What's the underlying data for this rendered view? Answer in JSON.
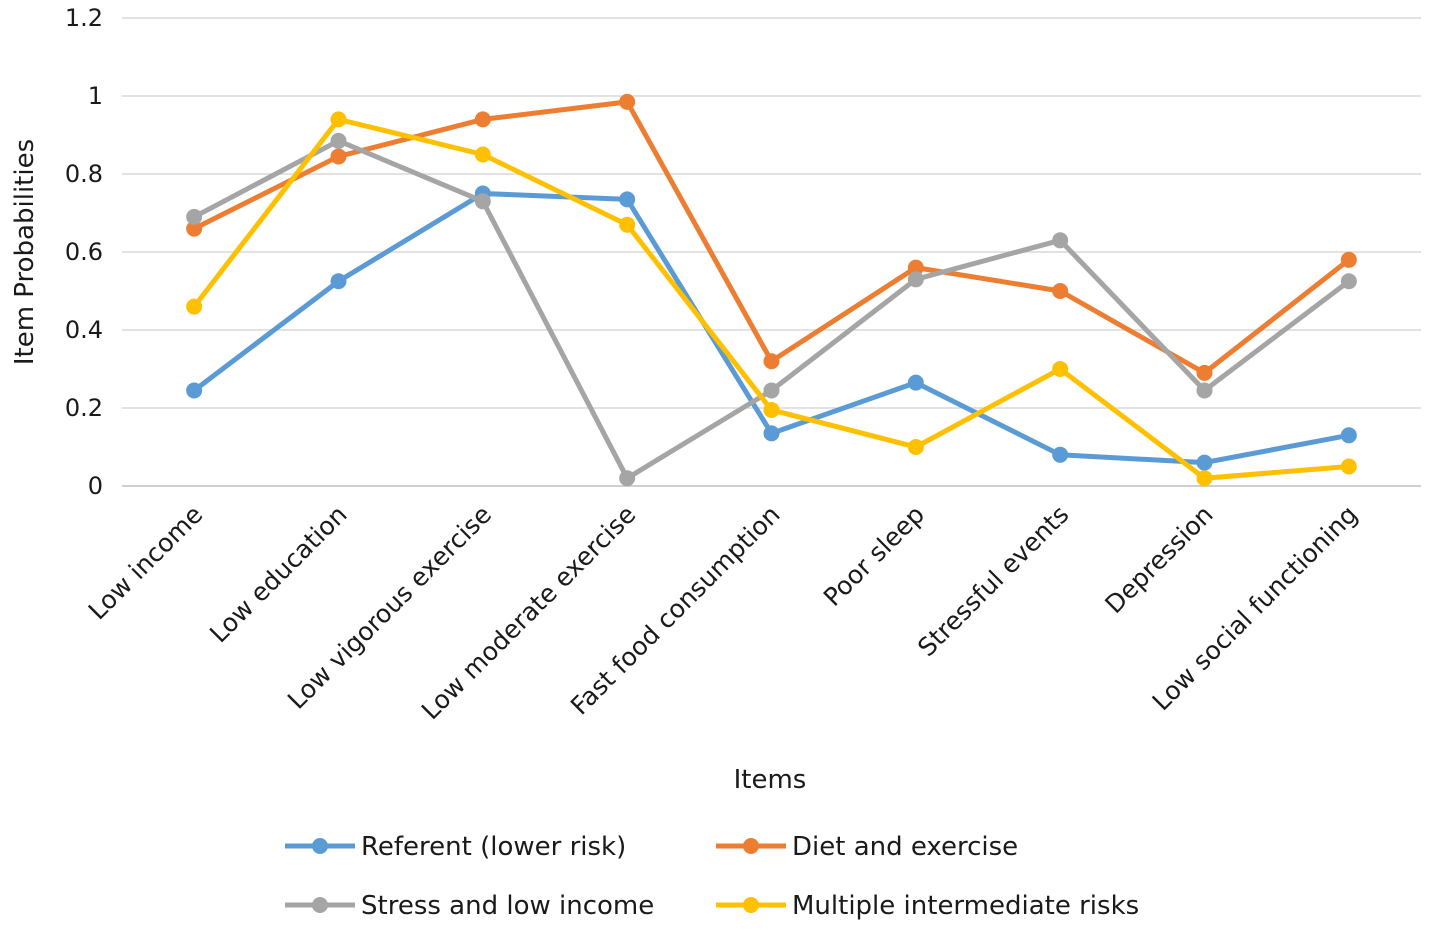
{
  "chart_data": {
    "type": "line",
    "title": "",
    "xlabel": "Items",
    "ylabel": "Item Probabilities",
    "ylim": [
      0,
      1.2
    ],
    "yticks": [
      0,
      0.2,
      0.4,
      0.6,
      0.8,
      1,
      1.2
    ],
    "ytick_labels": [
      "0",
      "0.2",
      "0.4",
      "0.6",
      "0.8",
      "1",
      "1.2"
    ],
    "grid": true,
    "legend_position": "bottom",
    "categories": [
      "Low income",
      "Low education",
      "Low vigorous exercise",
      "Low moderate exercise",
      "Fast food consumption",
      "Poor sleep",
      "Stressful events",
      "Depression",
      "Low social functioning"
    ],
    "series": [
      {
        "name": "Referent (lower risk)",
        "color": "#5b9bd5",
        "values": [
          0.245,
          0.525,
          0.75,
          0.735,
          0.135,
          0.265,
          0.08,
          0.06,
          0.13
        ]
      },
      {
        "name": "Diet and exercise",
        "color": "#ed7d31",
        "values": [
          0.66,
          0.845,
          0.94,
          0.985,
          0.32,
          0.56,
          0.5,
          0.29,
          0.58
        ]
      },
      {
        "name": "Stress and low income",
        "color": "#a5a5a5",
        "values": [
          0.69,
          0.885,
          0.73,
          0.02,
          0.245,
          0.53,
          0.63,
          0.245,
          0.525
        ]
      },
      {
        "name": "Multiple intermediate risks",
        "color": "#ffc000",
        "values": [
          0.46,
          0.94,
          0.85,
          0.67,
          0.195,
          0.1,
          0.3,
          0.02,
          0.05
        ]
      }
    ]
  }
}
